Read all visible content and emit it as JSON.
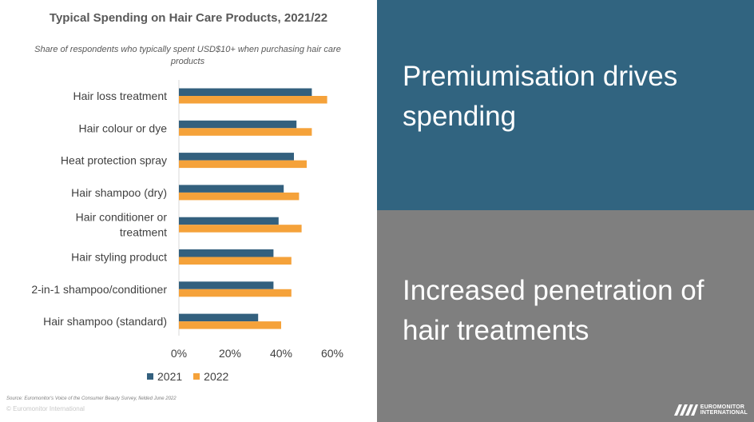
{
  "chart_data": {
    "type": "bar",
    "orientation": "horizontal",
    "title": "Typical Spending on Hair Care Products, 2021/22",
    "subtitle": "Share of respondents who typically spent USD$10+ when purchasing hair care products",
    "categories": [
      "Hair loss treatment",
      "Hair colour or dye",
      "Heat protection spray",
      "Hair shampoo (dry)",
      "Hair conditioner or treatment",
      "Hair styling product",
      "2-in-1 shampoo/conditioner",
      "Hair shampoo (standard)"
    ],
    "series": [
      {
        "name": "2021",
        "color": "#33607e",
        "values": [
          52,
          46,
          45,
          41,
          39,
          37,
          37,
          31
        ]
      },
      {
        "name": "2022",
        "color": "#f5a23a",
        "values": [
          58,
          52,
          50,
          47,
          48,
          44,
          44,
          40
        ]
      }
    ],
    "x_ticks": [
      "0%",
      "20%",
      "40%",
      "60%"
    ],
    "xlim": [
      0,
      60
    ],
    "legend_position": "bottom",
    "grid": false
  },
  "footer": {
    "source": "Source: Euromonitor's Voice of the Consumer Beauty Survey, fielded June 2022",
    "copyright": "© Euromonitor International"
  },
  "panels": {
    "top_text": "Premiumisation drives spending",
    "bottom_text": "Increased penetration of hair treatments"
  },
  "logo": {
    "line1": "EUROMONITOR",
    "line2": "INTERNATIONAL"
  }
}
